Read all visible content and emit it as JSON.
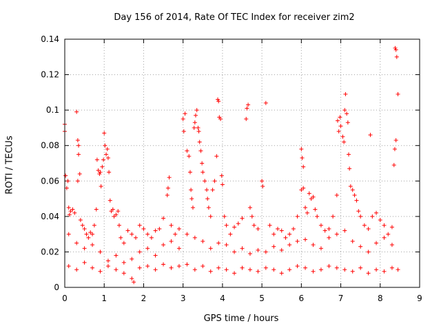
{
  "chart_data": {
    "type": "scatter",
    "title": "Day 156 of 2014, Rate Of TEC Index for receiver zim2",
    "xlabel": "GPS time / hours",
    "ylabel": "ROTI / TECUs",
    "xlim": [
      0,
      9
    ],
    "ylim": [
      0,
      0.14
    ],
    "xticks": [
      0,
      1,
      2,
      3,
      4,
      5,
      6,
      7,
      8,
      9
    ],
    "yticks": [
      0,
      0.02,
      0.04,
      0.06,
      0.08,
      0.1,
      0.12,
      0.14
    ],
    "ytick_labels": [
      "0",
      "0.02",
      "0.04",
      "0.06",
      "0.08",
      "0.1",
      "0.12",
      "0.14"
    ],
    "grid": true,
    "marker": "+",
    "color": "#ff0000",
    "series": [
      {
        "name": "ROTI",
        "points": [
          [
            0.0,
            0.092
          ],
          [
            0.0,
            0.088
          ],
          [
            0.02,
            0.063
          ],
          [
            0.05,
            0.056
          ],
          [
            0.08,
            0.06
          ],
          [
            0.1,
            0.045
          ],
          [
            0.12,
            0.041
          ],
          [
            0.15,
            0.043
          ],
          [
            0.2,
            0.044
          ],
          [
            0.25,
            0.042
          ],
          [
            0.3,
            0.099
          ],
          [
            0.33,
            0.083
          ],
          [
            0.35,
            0.08
          ],
          [
            0.35,
            0.075
          ],
          [
            0.33,
            0.06
          ],
          [
            0.38,
            0.064
          ],
          [
            0.4,
            0.038
          ],
          [
            0.45,
            0.035
          ],
          [
            0.5,
            0.033
          ],
          [
            0.55,
            0.03
          ],
          [
            0.6,
            0.028
          ],
          [
            0.65,
            0.031
          ],
          [
            0.7,
            0.03
          ],
          [
            0.75,
            0.035
          ],
          [
            0.8,
            0.044
          ],
          [
            0.82,
            0.072
          ],
          [
            0.85,
            0.066
          ],
          [
            0.88,
            0.064
          ],
          [
            0.9,
            0.065
          ],
          [
            0.92,
            0.057
          ],
          [
            0.95,
            0.068
          ],
          [
            0.98,
            0.072
          ],
          [
            1.0,
            0.087
          ],
          [
            1.02,
            0.08
          ],
          [
            1.05,
            0.075
          ],
          [
            1.08,
            0.078
          ],
          [
            1.1,
            0.073
          ],
          [
            1.12,
            0.065
          ],
          [
            1.15,
            0.049
          ],
          [
            1.18,
            0.043
          ],
          [
            1.22,
            0.044
          ],
          [
            1.25,
            0.04
          ],
          [
            1.3,
            0.041
          ],
          [
            1.35,
            0.043
          ],
          [
            1.38,
            0.035
          ],
          [
            1.42,
            0.028
          ],
          [
            1.5,
            0.025
          ],
          [
            1.6,
            0.032
          ],
          [
            1.7,
            0.03
          ],
          [
            1.8,
            0.028
          ],
          [
            1.9,
            0.035
          ],
          [
            2.0,
            0.033
          ],
          [
            2.1,
            0.03
          ],
          [
            2.2,
            0.028
          ],
          [
            2.3,
            0.032
          ],
          [
            2.4,
            0.033
          ],
          [
            2.5,
            0.039
          ],
          [
            2.6,
            0.052
          ],
          [
            2.62,
            0.056
          ],
          [
            2.65,
            0.062
          ],
          [
            2.7,
            0.035
          ],
          [
            2.8,
            0.03
          ],
          [
            2.9,
            0.033
          ],
          [
            3.0,
            0.095
          ],
          [
            3.02,
            0.088
          ],
          [
            3.05,
            0.098
          ],
          [
            3.1,
            0.077
          ],
          [
            3.15,
            0.074
          ],
          [
            3.18,
            0.065
          ],
          [
            3.2,
            0.055
          ],
          [
            3.22,
            0.05
          ],
          [
            3.25,
            0.045
          ],
          [
            3.28,
            0.09
          ],
          [
            3.3,
            0.093
          ],
          [
            3.32,
            0.097
          ],
          [
            3.35,
            0.1
          ],
          [
            3.38,
            0.09
          ],
          [
            3.4,
            0.088
          ],
          [
            3.42,
            0.082
          ],
          [
            3.45,
            0.077
          ],
          [
            3.48,
            0.07
          ],
          [
            3.5,
            0.065
          ],
          [
            3.55,
            0.06
          ],
          [
            3.6,
            0.055
          ],
          [
            3.62,
            0.05
          ],
          [
            3.65,
            0.045
          ],
          [
            3.7,
            0.04
          ],
          [
            3.75,
            0.055
          ],
          [
            3.8,
            0.06
          ],
          [
            3.85,
            0.074
          ],
          [
            3.88,
            0.106
          ],
          [
            3.9,
            0.105
          ],
          [
            3.92,
            0.096
          ],
          [
            3.95,
            0.095
          ],
          [
            3.98,
            0.063
          ],
          [
            4.0,
            0.058
          ],
          [
            4.05,
            0.04
          ],
          [
            4.1,
            0.035
          ],
          [
            4.2,
            0.03
          ],
          [
            4.3,
            0.034
          ],
          [
            4.4,
            0.036
          ],
          [
            4.5,
            0.039
          ],
          [
            4.6,
            0.095
          ],
          [
            4.62,
            0.101
          ],
          [
            4.65,
            0.103
          ],
          [
            4.7,
            0.045
          ],
          [
            4.75,
            0.04
          ],
          [
            4.8,
            0.035
          ],
          [
            4.9,
            0.033
          ],
          [
            5.0,
            0.06
          ],
          [
            5.02,
            0.057
          ],
          [
            5.1,
            0.104
          ],
          [
            5.2,
            0.035
          ],
          [
            5.3,
            0.03
          ],
          [
            5.4,
            0.033
          ],
          [
            5.5,
            0.032
          ],
          [
            5.6,
            0.028
          ],
          [
            5.7,
            0.03
          ],
          [
            5.8,
            0.033
          ],
          [
            5.9,
            0.04
          ],
          [
            6.0,
            0.078
          ],
          [
            6.02,
            0.073
          ],
          [
            6.05,
            0.068
          ],
          [
            6.0,
            0.055
          ],
          [
            6.05,
            0.056
          ],
          [
            6.1,
            0.045
          ],
          [
            6.15,
            0.042
          ],
          [
            6.2,
            0.053
          ],
          [
            6.25,
            0.05
          ],
          [
            6.3,
            0.051
          ],
          [
            6.35,
            0.044
          ],
          [
            6.4,
            0.04
          ],
          [
            6.5,
            0.035
          ],
          [
            6.6,
            0.032
          ],
          [
            6.7,
            0.033
          ],
          [
            6.8,
            0.04
          ],
          [
            6.9,
            0.052
          ],
          [
            6.92,
            0.094
          ],
          [
            6.95,
            0.088
          ],
          [
            6.98,
            0.096
          ],
          [
            7.0,
            0.091
          ],
          [
            7.05,
            0.085
          ],
          [
            7.08,
            0.082
          ],
          [
            7.1,
            0.1
          ],
          [
            7.12,
            0.109
          ],
          [
            7.15,
            0.098
          ],
          [
            7.18,
            0.093
          ],
          [
            7.2,
            0.075
          ],
          [
            7.22,
            0.067
          ],
          [
            7.25,
            0.057
          ],
          [
            7.3,
            0.055
          ],
          [
            7.35,
            0.052
          ],
          [
            7.4,
            0.049
          ],
          [
            7.45,
            0.043
          ],
          [
            7.5,
            0.04
          ],
          [
            7.6,
            0.035
          ],
          [
            7.7,
            0.033
          ],
          [
            7.75,
            0.086
          ],
          [
            7.8,
            0.04
          ],
          [
            7.9,
            0.042
          ],
          [
            8.0,
            0.038
          ],
          [
            8.1,
            0.035
          ],
          [
            8.2,
            0.03
          ],
          [
            8.3,
            0.034
          ],
          [
            8.35,
            0.069
          ],
          [
            8.37,
            0.078
          ],
          [
            8.4,
            0.083
          ],
          [
            8.38,
            0.135
          ],
          [
            8.4,
            0.134
          ],
          [
            8.42,
            0.13
          ],
          [
            8.45,
            0.109
          ],
          [
            0.1,
            0.03
          ],
          [
            0.3,
            0.025
          ],
          [
            0.5,
            0.022
          ],
          [
            0.7,
            0.024
          ],
          [
            0.9,
            0.02
          ],
          [
            1.1,
            0.015
          ],
          [
            1.3,
            0.018
          ],
          [
            1.5,
            0.014
          ],
          [
            1.7,
            0.016
          ],
          [
            1.9,
            0.02
          ],
          [
            2.1,
            0.022
          ],
          [
            2.3,
            0.018
          ],
          [
            2.5,
            0.024
          ],
          [
            2.7,
            0.026
          ],
          [
            2.9,
            0.022
          ],
          [
            3.1,
            0.03
          ],
          [
            3.3,
            0.028
          ],
          [
            3.5,
            0.026
          ],
          [
            3.7,
            0.022
          ],
          [
            3.9,
            0.025
          ],
          [
            4.1,
            0.024
          ],
          [
            4.3,
            0.02
          ],
          [
            4.5,
            0.022
          ],
          [
            4.7,
            0.019
          ],
          [
            4.9,
            0.021
          ],
          [
            5.1,
            0.02
          ],
          [
            5.3,
            0.023
          ],
          [
            5.5,
            0.021
          ],
          [
            5.7,
            0.024
          ],
          [
            5.9,
            0.026
          ],
          [
            6.1,
            0.027
          ],
          [
            6.3,
            0.024
          ],
          [
            6.5,
            0.022
          ],
          [
            6.7,
            0.028
          ],
          [
            6.9,
            0.03
          ],
          [
            7.1,
            0.032
          ],
          [
            7.3,
            0.026
          ],
          [
            7.5,
            0.023
          ],
          [
            7.7,
            0.02
          ],
          [
            7.9,
            0.025
          ],
          [
            8.1,
            0.028
          ],
          [
            8.3,
            0.024
          ],
          [
            0.1,
            0.012
          ],
          [
            0.3,
            0.01
          ],
          [
            0.5,
            0.014
          ],
          [
            0.7,
            0.011
          ],
          [
            0.9,
            0.009
          ],
          [
            1.1,
            0.012
          ],
          [
            1.3,
            0.01
          ],
          [
            1.5,
            0.008
          ],
          [
            1.7,
            0.005
          ],
          [
            1.75,
            0.003
          ],
          [
            1.9,
            0.011
          ],
          [
            2.1,
            0.012
          ],
          [
            2.3,
            0.01
          ],
          [
            2.5,
            0.013
          ],
          [
            2.7,
            0.011
          ],
          [
            2.9,
            0.012
          ],
          [
            3.1,
            0.013
          ],
          [
            3.3,
            0.01
          ],
          [
            3.5,
            0.012
          ],
          [
            3.7,
            0.009
          ],
          [
            3.9,
            0.011
          ],
          [
            4.1,
            0.01
          ],
          [
            4.3,
            0.008
          ],
          [
            4.5,
            0.011
          ],
          [
            4.7,
            0.01
          ],
          [
            4.9,
            0.009
          ],
          [
            5.1,
            0.011
          ],
          [
            5.3,
            0.01
          ],
          [
            5.5,
            0.008
          ],
          [
            5.7,
            0.01
          ],
          [
            5.9,
            0.012
          ],
          [
            6.1,
            0.011
          ],
          [
            6.3,
            0.009
          ],
          [
            6.5,
            0.01
          ],
          [
            6.7,
            0.012
          ],
          [
            6.9,
            0.011
          ],
          [
            7.1,
            0.01
          ],
          [
            7.3,
            0.009
          ],
          [
            7.5,
            0.011
          ],
          [
            7.7,
            0.008
          ],
          [
            7.9,
            0.01
          ],
          [
            8.1,
            0.009
          ],
          [
            8.3,
            0.011
          ],
          [
            8.45,
            0.01
          ]
        ]
      }
    ]
  }
}
